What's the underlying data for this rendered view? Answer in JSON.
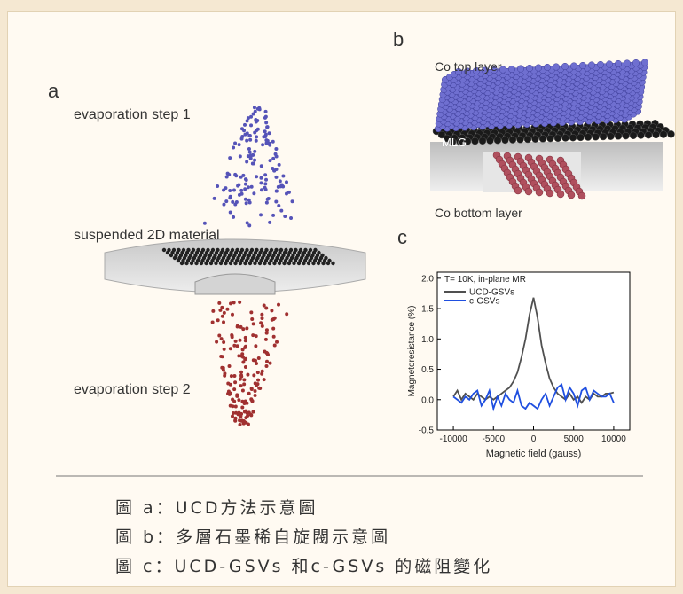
{
  "panels": {
    "a": {
      "letter": "a",
      "labels": [
        "evaporation step 1",
        "suspended 2D material",
        "evaporation step 2"
      ]
    },
    "b": {
      "letter": "b",
      "labels": [
        "Co top layer",
        "MLG",
        "Co bottom layer"
      ]
    },
    "c": {
      "letter": "c"
    }
  },
  "chart_data": {
    "type": "line",
    "annotation": "T= 10K, in-plane MR",
    "xlabel": "Magnetic field (gauss)",
    "ylabel": "Magnetoresistance (%)",
    "xlim": [
      -12000,
      12000
    ],
    "ylim": [
      -0.5,
      2.1
    ],
    "xticks": [
      -10000,
      -5000,
      0,
      5000,
      10000
    ],
    "yticks": [
      -0.5,
      {
        "value": 0,
        "label": "0.0"
      },
      0.5,
      {
        "value": 1,
        "label": "1.0"
      },
      1.5,
      {
        "value": 2,
        "label": "2.0"
      }
    ],
    "x": [
      -10000,
      -9500,
      -9000,
      -8500,
      -8000,
      -7500,
      -7000,
      -6500,
      -6000,
      -5500,
      -5000,
      -4500,
      -4000,
      -3500,
      -3000,
      -2500,
      -2000,
      -1500,
      -1000,
      -500,
      0,
      500,
      1000,
      1500,
      2000,
      2500,
      3000,
      3500,
      4000,
      4500,
      5000,
      5500,
      6000,
      6500,
      7000,
      7500,
      8000,
      8500,
      9000,
      9500,
      10000
    ],
    "series": [
      {
        "name": "UCD-GSVs",
        "color": "#505050",
        "values": [
          0.05,
          0.15,
          0.0,
          0.1,
          0.05,
          0.0,
          0.1,
          0.05,
          0.0,
          0.05,
          0.0,
          0.05,
          0.1,
          0.15,
          0.2,
          0.3,
          0.45,
          0.7,
          1.0,
          1.4,
          1.68,
          1.35,
          0.9,
          0.6,
          0.35,
          0.2,
          0.1,
          0.05,
          0.0,
          0.1,
          0.0,
          0.05,
          -0.05,
          0.05,
          0.0,
          0.1,
          0.05,
          0.05,
          0.1,
          0.1,
          0.12
        ]
      },
      {
        "name": "c-GSVs",
        "color": "#1f4fe0",
        "values": [
          0.05,
          0.0,
          -0.05,
          0.05,
          0.0,
          0.1,
          0.15,
          -0.1,
          0.0,
          0.15,
          -0.15,
          0.05,
          -0.1,
          0.1,
          0.0,
          -0.05,
          0.15,
          -0.1,
          -0.15,
          -0.05,
          -0.1,
          -0.15,
          0.0,
          0.1,
          -0.1,
          0.05,
          0.2,
          0.25,
          0.0,
          0.2,
          0.1,
          -0.1,
          0.15,
          0.2,
          0.0,
          0.15,
          0.1,
          0.05,
          0.05,
          0.1,
          -0.05
        ]
      }
    ]
  },
  "captions": [
    "圖 a：UCD方法示意圖",
    "圖 b：多層石墨稀自旋閥示意圖",
    "圖 c：UCD-GSVs 和c-GSVs 的磁阻變化"
  ]
}
